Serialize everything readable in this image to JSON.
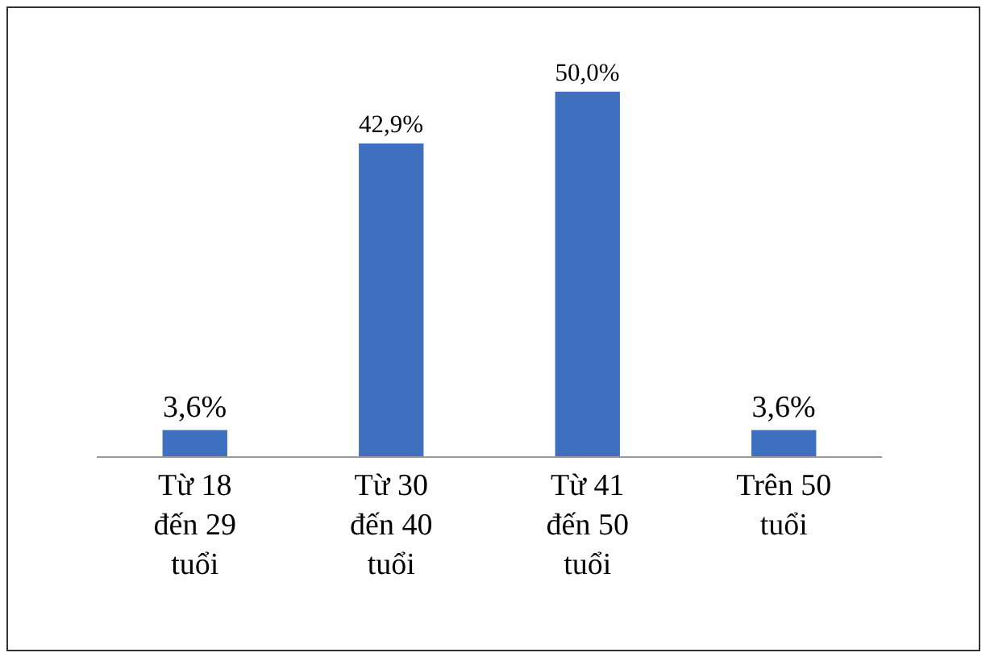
{
  "chart_data": {
    "type": "bar",
    "categories": [
      "Từ 18\nđến 29\ntuổi",
      "Từ 30\nđến 40\ntuổi",
      "Từ 41\nđến 50\ntuổi",
      "Trên 50\ntuổi"
    ],
    "values": [
      3.6,
      42.9,
      50.0,
      3.6
    ],
    "value_labels": [
      "3,6%",
      "42,9%",
      "50,0%",
      "3,6%"
    ],
    "color": "#3f6fbf"
  }
}
